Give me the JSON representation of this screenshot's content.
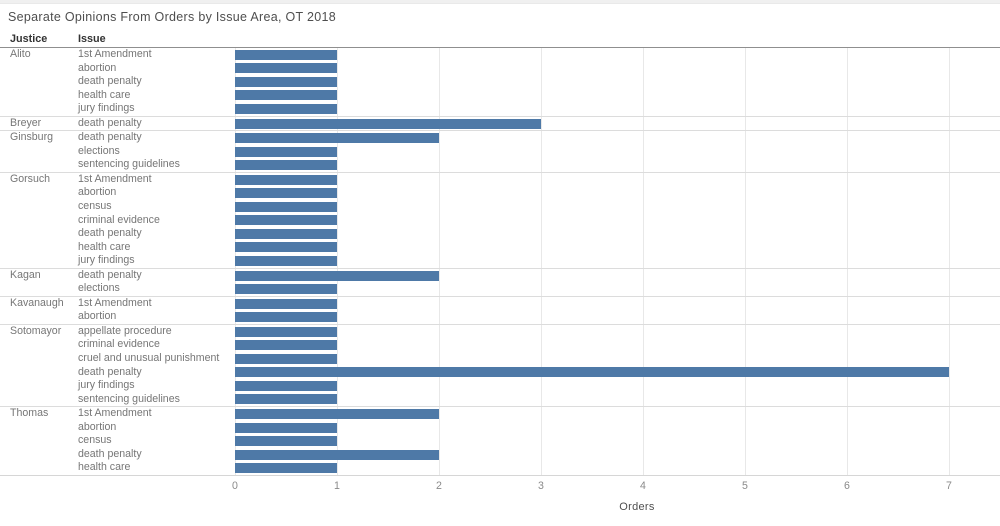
{
  "page": {
    "title": "Separate Opinions From Orders by Issue Area, OT 2018"
  },
  "columns": {
    "justice_header": "Justice",
    "issue_header": "Issue"
  },
  "axis": {
    "label": "Orders"
  },
  "colors": {
    "bar": "#4e79a7",
    "gridline": "#e8e8e8",
    "separator": "#dcdcdc"
  },
  "chart_data": {
    "type": "bar",
    "orientation": "horizontal",
    "title": "Separate Opinions From Orders by Issue Area, OT 2018",
    "xlabel": "Orders",
    "ylabel": "",
    "xlim": [
      0,
      7
    ],
    "xticks": [
      0,
      1,
      2,
      3,
      4,
      5,
      6,
      7
    ],
    "grid": true,
    "groups": [
      {
        "justice": "Alito",
        "rows": [
          {
            "issue": "1st Amendment",
            "orders": 1
          },
          {
            "issue": "abortion",
            "orders": 1
          },
          {
            "issue": "death penalty",
            "orders": 1
          },
          {
            "issue": "health care",
            "orders": 1
          },
          {
            "issue": "jury findings",
            "orders": 1
          }
        ]
      },
      {
        "justice": "Breyer",
        "rows": [
          {
            "issue": "death penalty",
            "orders": 3
          }
        ]
      },
      {
        "justice": "Ginsburg",
        "rows": [
          {
            "issue": "death penalty",
            "orders": 2
          },
          {
            "issue": "elections",
            "orders": 1
          },
          {
            "issue": "sentencing guidelines",
            "orders": 1
          }
        ]
      },
      {
        "justice": "Gorsuch",
        "rows": [
          {
            "issue": "1st Amendment",
            "orders": 1
          },
          {
            "issue": "abortion",
            "orders": 1
          },
          {
            "issue": "census",
            "orders": 1
          },
          {
            "issue": "criminal evidence",
            "orders": 1
          },
          {
            "issue": "death penalty",
            "orders": 1
          },
          {
            "issue": "health care",
            "orders": 1
          },
          {
            "issue": "jury findings",
            "orders": 1
          }
        ]
      },
      {
        "justice": "Kagan",
        "rows": [
          {
            "issue": "death penalty",
            "orders": 2
          },
          {
            "issue": "elections",
            "orders": 1
          }
        ]
      },
      {
        "justice": "Kavanaugh",
        "rows": [
          {
            "issue": "1st Amendment",
            "orders": 1
          },
          {
            "issue": "abortion",
            "orders": 1
          }
        ]
      },
      {
        "justice": "Sotomayor",
        "rows": [
          {
            "issue": "appellate procedure",
            "orders": 1
          },
          {
            "issue": "criminal evidence",
            "orders": 1
          },
          {
            "issue": "cruel and unusual punishment",
            "orders": 1
          },
          {
            "issue": "death penalty",
            "orders": 7
          },
          {
            "issue": "jury findings",
            "orders": 1
          },
          {
            "issue": "sentencing guidelines",
            "orders": 1
          }
        ]
      },
      {
        "justice": "Thomas",
        "rows": [
          {
            "issue": "1st Amendment",
            "orders": 2
          },
          {
            "issue": "abortion",
            "orders": 1
          },
          {
            "issue": "census",
            "orders": 1
          },
          {
            "issue": "death penalty",
            "orders": 2
          },
          {
            "issue": "health care",
            "orders": 1
          }
        ]
      }
    ]
  }
}
